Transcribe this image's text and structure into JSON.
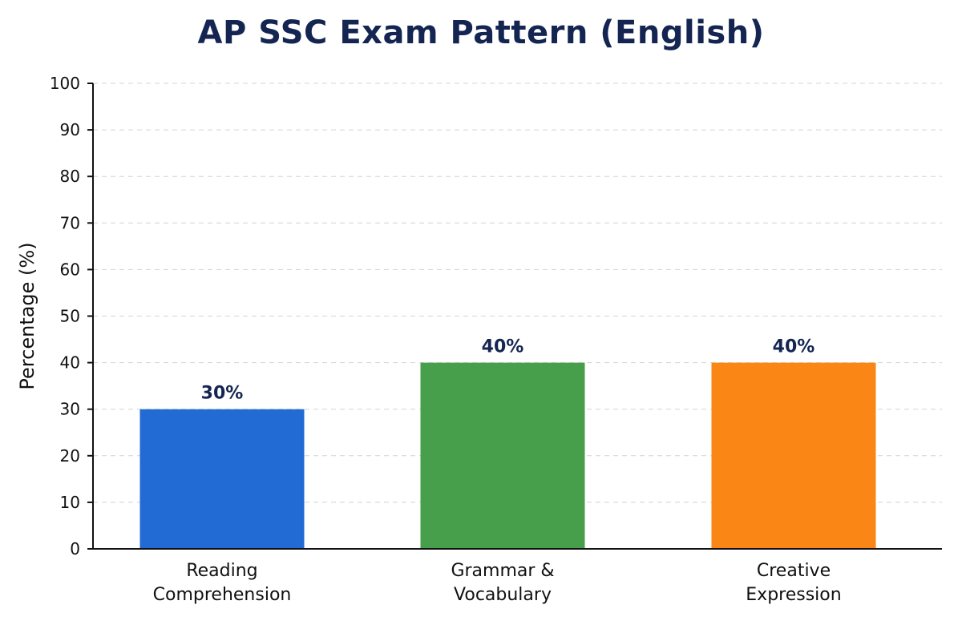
{
  "chart_data": {
    "type": "bar",
    "title": "AP SSC Exam Pattern (English)",
    "xlabel": "",
    "ylabel": "Percentage (%)",
    "ylim": [
      0,
      100
    ],
    "yticks": [
      0,
      10,
      20,
      30,
      40,
      50,
      60,
      70,
      80,
      90,
      100
    ],
    "grid": true,
    "categories": [
      [
        "Reading",
        "Comprehension"
      ],
      [
        "Grammar &",
        "Vocabulary"
      ],
      [
        "Creative",
        "Expression"
      ]
    ],
    "values": [
      30,
      40,
      40
    ],
    "data_labels": [
      "30%",
      "40%",
      "40%"
    ],
    "colors": [
      "#236bd4",
      "#479e4b",
      "#f98615"
    ]
  }
}
